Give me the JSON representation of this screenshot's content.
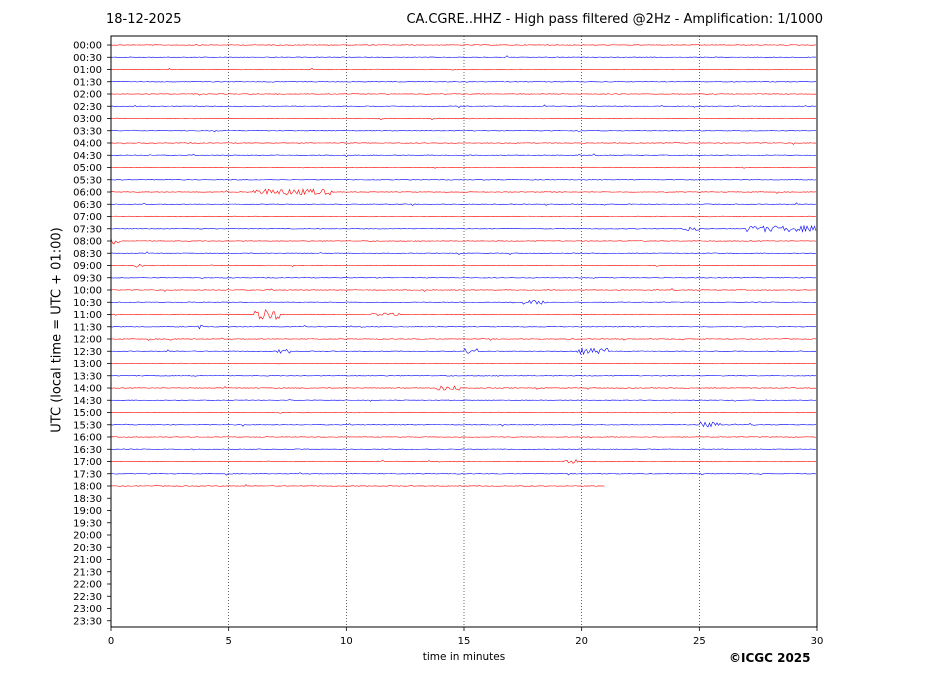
{
  "header": {
    "date": "18-12-2025",
    "title": "CA.CGRE..HHZ - High pass filtered @2Hz - Amplification: 1/1000"
  },
  "footer": {
    "xlabel": "time in minutes",
    "copyright": "©ICGC 2025"
  },
  "chart_data": {
    "type": "line",
    "title": "CA.CGRE..HHZ - High pass filtered @2Hz - Amplification: 1/1000",
    "date": "18-12-2025",
    "xlabel": "time in minutes",
    "ylabel": "UTC (local time = UTC + 01:00)",
    "xlim": [
      0,
      30
    ],
    "x_ticks": [
      0,
      5,
      10,
      15,
      20,
      25,
      30
    ],
    "vertical_gridlines_at": [
      5,
      10,
      15,
      20,
      25
    ],
    "grid": "vertical dotted",
    "rows": [
      "00:00",
      "00:30",
      "01:00",
      "01:30",
      "02:00",
      "02:30",
      "03:00",
      "03:30",
      "04:00",
      "04:30",
      "05:00",
      "05:30",
      "06:00",
      "06:30",
      "07:00",
      "07:30",
      "08:00",
      "08:30",
      "09:00",
      "09:30",
      "10:00",
      "10:30",
      "11:00",
      "11:30",
      "12:00",
      "12:30",
      "13:00",
      "13:30",
      "14:00",
      "14:30",
      "15:00",
      "15:30",
      "16:00",
      "16:30",
      "17:00",
      "17:30",
      "18:00",
      "18:30",
      "19:00",
      "19:30",
      "20:00",
      "20:30",
      "21:00",
      "21:30",
      "22:00",
      "22:30",
      "23:00",
      "23:30"
    ],
    "trace_colors": [
      "#ff0000",
      "#0000ff"
    ],
    "recorded_until_row": "18:00",
    "last_row_end_minute": 21,
    "events": [
      {
        "row": "06:00",
        "x_start": 6.0,
        "x_end": 9.4,
        "amplitude": 3
      },
      {
        "row": "07:30",
        "x_start": 24.2,
        "x_end": 25.0,
        "amplitude": 2
      },
      {
        "row": "07:30",
        "x_start": 27.0,
        "x_end": 30.0,
        "amplitude": 3
      },
      {
        "row": "08:00",
        "x_start": 0.0,
        "x_end": 0.5,
        "amplitude": 3
      },
      {
        "row": "09:00",
        "x_start": 1.0,
        "x_end": 1.4,
        "amplitude": 2
      },
      {
        "row": "10:30",
        "x_start": 17.5,
        "x_end": 18.5,
        "amplitude": 2
      },
      {
        "row": "11:00",
        "x_start": 6.1,
        "x_end": 7.2,
        "amplitude": 5
      },
      {
        "row": "11:00",
        "x_start": 11.0,
        "x_end": 12.3,
        "amplitude": 1.5
      },
      {
        "row": "11:30",
        "x_start": 3.6,
        "x_end": 4.0,
        "amplitude": 2
      },
      {
        "row": "12:00",
        "x_start": 2.3,
        "x_end": 2.6,
        "amplitude": 2
      },
      {
        "row": "12:30",
        "x_start": 7.0,
        "x_end": 7.6,
        "amplitude": 2
      },
      {
        "row": "12:30",
        "x_start": 15.0,
        "x_end": 15.6,
        "amplitude": 3
      },
      {
        "row": "12:30",
        "x_start": 19.8,
        "x_end": 21.2,
        "amplitude": 3
      },
      {
        "row": "14:00",
        "x_start": 13.8,
        "x_end": 14.8,
        "amplitude": 2.5
      },
      {
        "row": "15:30",
        "x_start": 25.0,
        "x_end": 25.9,
        "amplitude": 3
      },
      {
        "row": "17:00",
        "x_start": 19.3,
        "x_end": 19.9,
        "amplitude": 2
      }
    ]
  }
}
